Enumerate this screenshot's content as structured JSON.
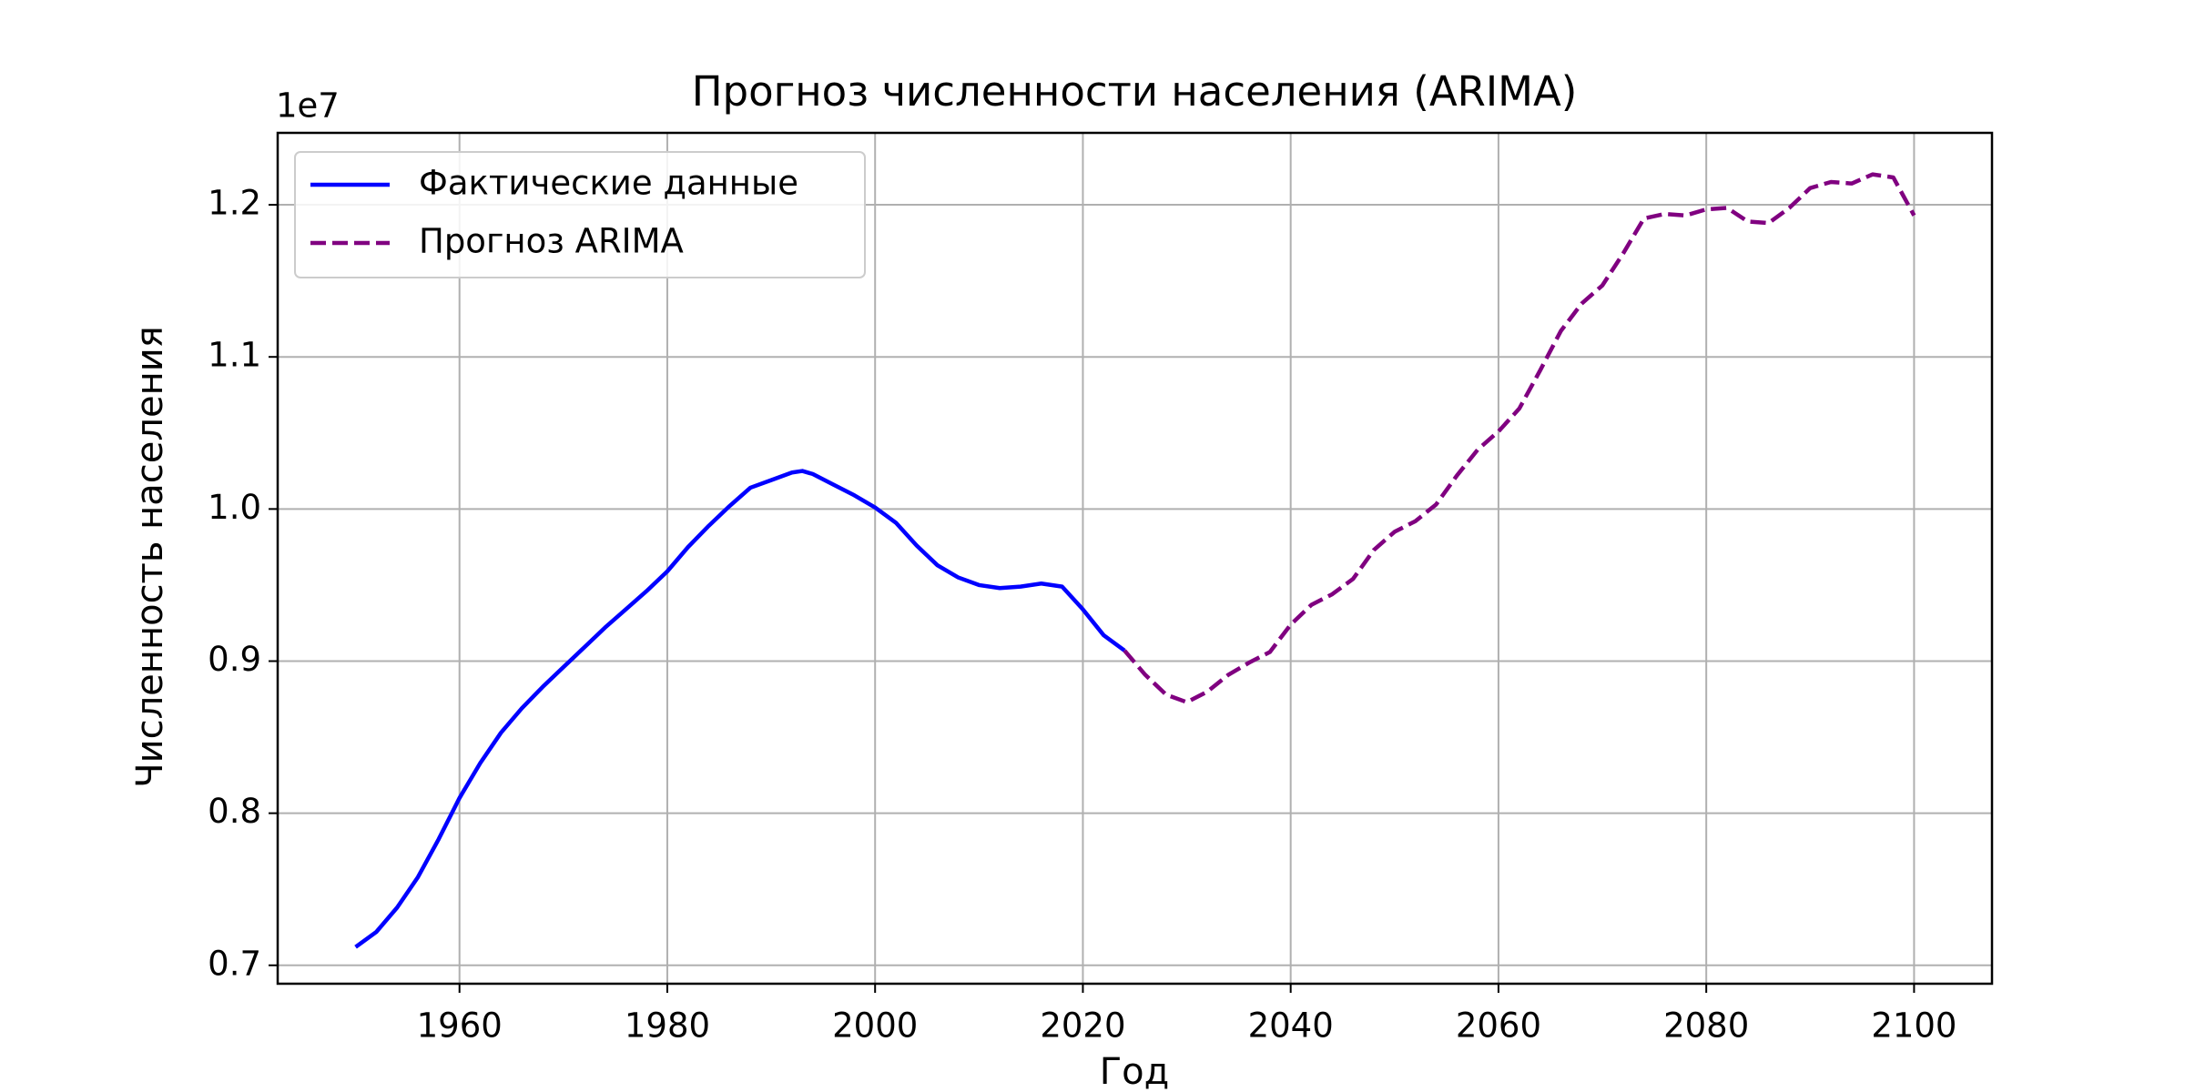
{
  "chart_data": {
    "type": "line",
    "title": "Прогноз численности населения (ARIMA)",
    "x_label": "Год",
    "y_label": "Численность населения",
    "y_offset_label": "1e7",
    "xlim": [
      1942.5,
      2107.5
    ],
    "xticks": [
      1960,
      1980,
      2000,
      2020,
      2040,
      2060,
      2080,
      2100
    ],
    "ylim": [
      0.6879,
      1.2473
    ],
    "yticks": [
      0.7,
      0.8,
      0.9,
      {
        "value": 1.0,
        "label": "1.0"
      },
      1.1,
      1.2
    ],
    "grid": true,
    "legend": "upper left",
    "series": [
      {
        "name": "Фактические данные",
        "color": "#0000ff",
        "style": "solid",
        "x": [
          1950,
          1952,
          1954,
          1956,
          1958,
          1960,
          1962,
          1964,
          1966,
          1968,
          1970,
          1972,
          1974,
          1976,
          1978,
          1980,
          1982,
          1984,
          1986,
          1988,
          1990,
          1992,
          1993,
          1994,
          1996,
          1998,
          2000,
          2002,
          2004,
          2006,
          2008,
          2010,
          2012,
          2014,
          2016,
          2018,
          2020,
          2022,
          2024
        ],
        "values": [
          0.712,
          0.722,
          0.738,
          0.758,
          0.783,
          0.81,
          0.833,
          0.853,
          0.869,
          0.883,
          0.896,
          0.909,
          0.922,
          0.934,
          0.946,
          0.959,
          0.975,
          0.989,
          1.002,
          1.014,
          1.019,
          1.024,
          1.025,
          1.023,
          1.016,
          1.009,
          1.001,
          0.991,
          0.976,
          0.963,
          0.955,
          0.95,
          0.948,
          0.949,
          0.951,
          0.949,
          0.934,
          0.917,
          0.907
        ]
      },
      {
        "name": "Прогноз ARIMA",
        "color": "#800080",
        "style": "dashed",
        "x": [
          2024,
          2026,
          2028,
          2030,
          2032,
          2034,
          2036,
          2038,
          2040,
          2042,
          2044,
          2046,
          2048,
          2050,
          2052,
          2054,
          2056,
          2058,
          2060,
          2062,
          2064,
          2066,
          2068,
          2070,
          2072,
          2074,
          2076,
          2078,
          2080,
          2082,
          2084,
          2086,
          2088,
          2090,
          2092,
          2094,
          2096,
          2098,
          2100
        ],
        "values": [
          0.907,
          0.891,
          0.878,
          0.873,
          0.88,
          0.891,
          0.899,
          0.906,
          0.924,
          0.937,
          0.944,
          0.954,
          0.973,
          0.985,
          0.992,
          1.003,
          1.022,
          1.039,
          1.051,
          1.066,
          1.091,
          1.117,
          1.135,
          1.147,
          1.168,
          1.191,
          1.194,
          1.193,
          1.197,
          1.198,
          1.189,
          1.188,
          1.198,
          1.211,
          1.215,
          1.214,
          1.22,
          1.218,
          1.193
        ]
      }
    ]
  }
}
